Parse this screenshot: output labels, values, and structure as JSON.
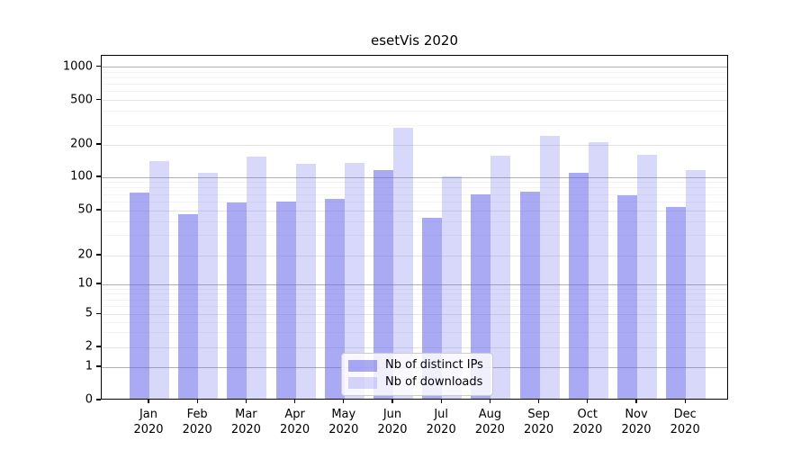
{
  "title": "esetVis 2020",
  "chart_data": {
    "type": "bar",
    "title": "esetVis 2020",
    "categories": [
      "Jan 2020",
      "Feb 2020",
      "Mar 2020",
      "Apr 2020",
      "May 2020",
      "Jun 2020",
      "Jul 2020",
      "Aug 2020",
      "Sep 2020",
      "Oct 2020",
      "Nov 2020",
      "Dec 2020"
    ],
    "series": [
      {
        "name": "Nb of distinct IPs",
        "color": "rgba(99,99,235,0.55)",
        "values": [
          70,
          45,
          57,
          58,
          61,
          112,
          42,
          67,
          71,
          106,
          66,
          52
        ]
      },
      {
        "name": "Nb of downloads",
        "color": "rgba(99,99,235,0.25)",
        "values": [
          135,
          105,
          150,
          128,
          130,
          275,
          98,
          152,
          230,
          205,
          155,
          112
        ]
      }
    ],
    "xlabel": "",
    "ylabel": "",
    "yscale": "symlog",
    "yticks": [
      0,
      1,
      2,
      5,
      10,
      20,
      50,
      100,
      200,
      500,
      1000
    ],
    "ylim": [
      0,
      1300
    ],
    "grid": "horizontal",
    "legend_position": "lower center"
  },
  "colors": {
    "bar_distinct_ips": "rgba(99,99,235,0.55)",
    "bar_downloads": "rgba(99,99,235,0.25)",
    "axis_spine": "#000000",
    "grid_major": "#b0b0b0",
    "grid_mid": "#e4e4e4",
    "grid_minor": "#f3f3f3",
    "legend_border": "#cccccc"
  }
}
